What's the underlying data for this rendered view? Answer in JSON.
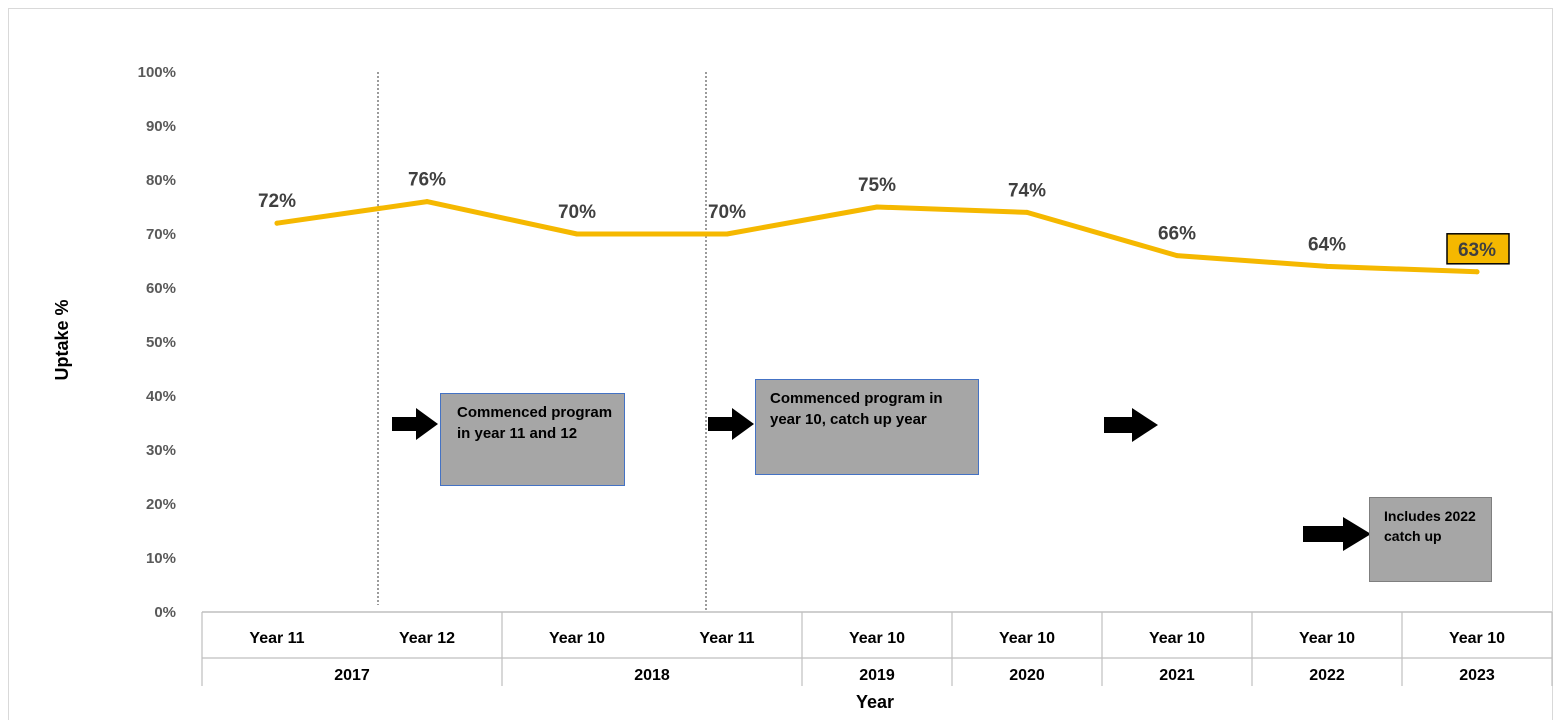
{
  "chart_data": {
    "type": "line",
    "ylabel": "Uptake %",
    "xlabel": "Year",
    "ylim": [
      0,
      100
    ],
    "y_ticks": [
      "0%",
      "10%",
      "20%",
      "30%",
      "40%",
      "50%",
      "60%",
      "70%",
      "80%",
      "90%",
      "100%"
    ],
    "categories": [
      "Year 11",
      "Year 12",
      "Year 10",
      "Year 11",
      "Year 10",
      "Year 10",
      "Year 10",
      "Year 10",
      "Year 10"
    ],
    "year_groups": [
      {
        "label": "2017",
        "span": 2
      },
      {
        "label": "2018",
        "span": 2
      },
      {
        "label": "2019",
        "span": 1
      },
      {
        "label": "2020",
        "span": 1
      },
      {
        "label": "2021",
        "span": 1
      },
      {
        "label": "2022",
        "span": 1
      },
      {
        "label": "2023",
        "span": 1
      }
    ],
    "series": [
      {
        "values": [
          72,
          76,
          70,
          70,
          75,
          74,
          66,
          64,
          63
        ],
        "data_labels": [
          "72%",
          "76%",
          "70%",
          "70%",
          "75%",
          "74%",
          "66%",
          "64%",
          "63%"
        ],
        "color": "#f5b800"
      }
    ],
    "highlight_index": 8,
    "highlight_fill": "#f5b800",
    "grid": false,
    "annotations": [
      {
        "text": "Commenced program in year 11 and 12"
      },
      {
        "text": "Commenced program in year 10, catch up year"
      },
      {
        "text": "Includes 2022 catch up"
      }
    ]
  }
}
